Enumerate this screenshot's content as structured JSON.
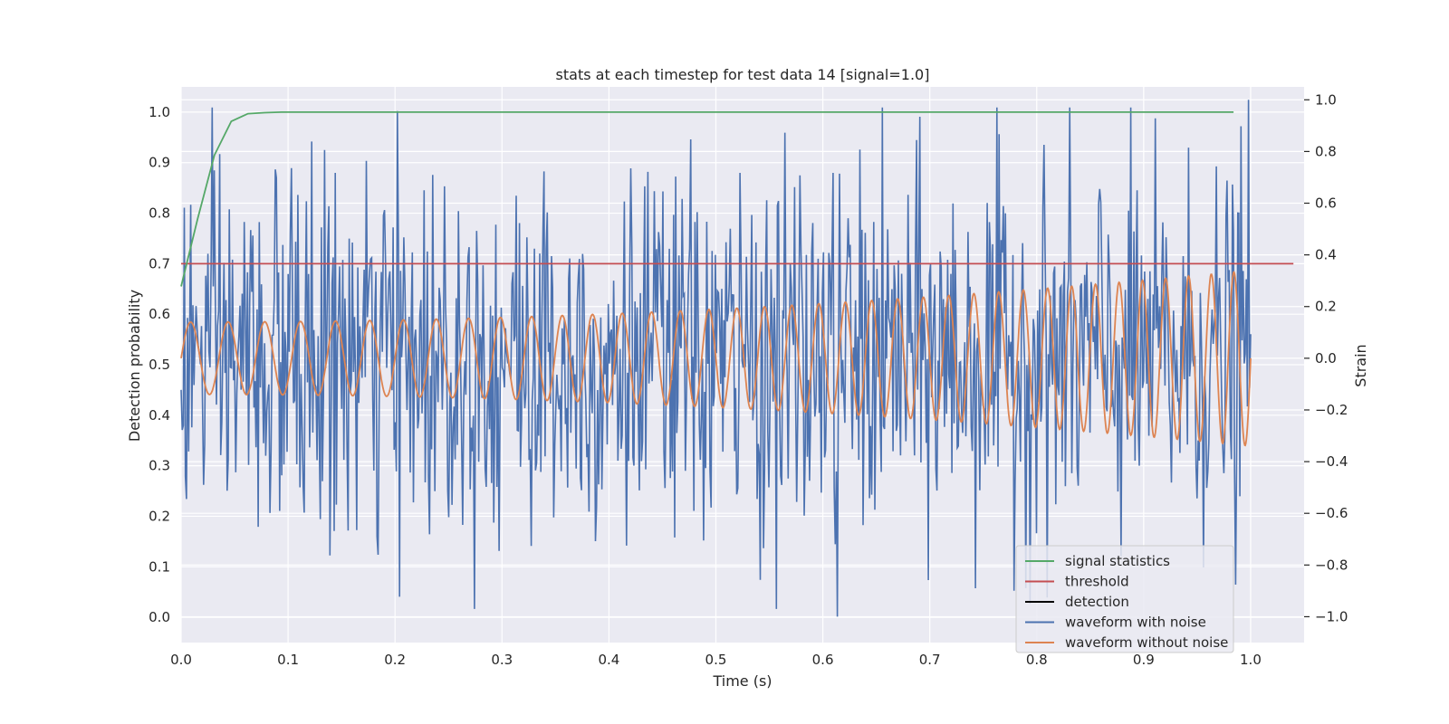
{
  "chart_data": {
    "type": "line",
    "title": "stats at each timestep for test data 14 [signal=1.0]",
    "xlabel": "Time (s)",
    "ylabel": "Detection probability",
    "y2label": "Strain",
    "xlim": [
      0.0,
      1.05
    ],
    "ylim": [
      -0.05,
      1.05
    ],
    "y2lim": [
      -1.1,
      1.05
    ],
    "xticks": [
      "0.0",
      "0.1",
      "0.2",
      "0.3",
      "0.4",
      "0.5",
      "0.6",
      "0.7",
      "0.8",
      "0.9",
      "1.0"
    ],
    "yticks": [
      "0.0",
      "0.1",
      "0.2",
      "0.3",
      "0.4",
      "0.5",
      "0.6",
      "0.7",
      "0.8",
      "0.9",
      "1.0"
    ],
    "y2ticks": [
      "−1.0",
      "−0.8",
      "−0.6",
      "−0.4",
      "−0.2",
      "0.0",
      "0.2",
      "0.4",
      "0.6",
      "0.8",
      "1.0"
    ],
    "grid": true,
    "legend_position": "lower-right",
    "colors": {
      "signal": "#55a868",
      "threshold": "#c44e52",
      "detection": "#000000",
      "noisy": "#4c72b0",
      "clean": "#dd8452",
      "background": "#eaeaf2",
      "grid": "#ffffff"
    },
    "legend": [
      {
        "label": "signal statistics",
        "color": "#55a868"
      },
      {
        "label": "threshold",
        "color": "#c44e52"
      },
      {
        "label": "detection",
        "color": "#000000"
      },
      {
        "label": "waveform with noise",
        "color": "#4c72b0"
      },
      {
        "label": "waveform without noise",
        "color": "#dd8452"
      }
    ],
    "series": [
      {
        "name": "signal statistics",
        "axis": "left",
        "x": [
          0.0,
          0.0156,
          0.0312,
          0.0469,
          0.0625,
          0.0781,
          0.0938,
          0.2,
          0.4,
          0.6,
          0.8,
          0.984
        ],
        "y": [
          0.655,
          0.79,
          0.915,
          0.982,
          0.997,
          0.999,
          1.0,
          1.0,
          1.0,
          1.0,
          1.0,
          1.0
        ]
      },
      {
        "name": "threshold",
        "axis": "left",
        "x": [
          0.0,
          1.04
        ],
        "y": [
          0.7,
          0.7
        ]
      },
      {
        "name": "detection",
        "axis": "left",
        "x": [],
        "y": []
      },
      {
        "name": "waveform with noise",
        "axis": "right",
        "generated": true,
        "n_points": 1000,
        "amplitude": 0.36,
        "y_max": 1.0,
        "y_min": -1.0
      },
      {
        "name": "waveform without noise",
        "axis": "right",
        "generated": true,
        "chirp": {
          "f0": 28,
          "f1": 48,
          "a0": 0.14,
          "a1": 0.34
        }
      }
    ]
  }
}
